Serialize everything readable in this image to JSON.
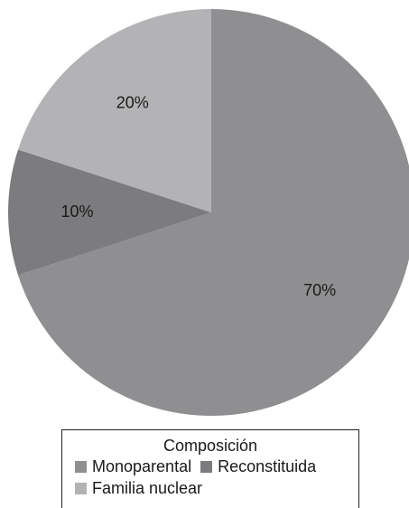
{
  "chart_data": {
    "type": "pie",
    "categories": [
      "Monoparental",
      "Reconstituida",
      "Familia nuclear"
    ],
    "values": [
      70,
      10,
      20
    ],
    "value_labels": [
      "70%",
      "10%",
      "20%"
    ],
    "colors": [
      "#8f8f91",
      "#7c7c7e",
      "#b3b3b5"
    ],
    "start_angle_deg": 0,
    "direction": "clockwise",
    "legend": {
      "title": "Composición",
      "placement": "bottom",
      "entries": [
        "Monoparental",
        "Reconstituida",
        "Familia nuclear"
      ]
    }
  }
}
